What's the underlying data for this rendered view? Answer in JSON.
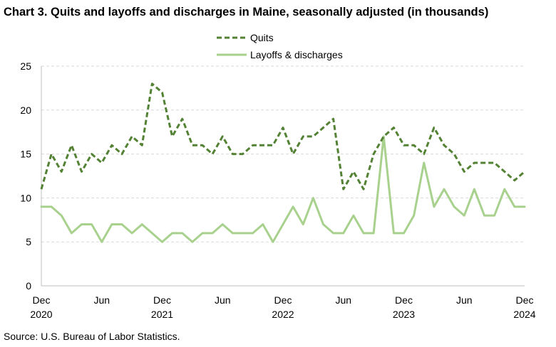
{
  "chart_data": {
    "type": "line",
    "title": "Chart 3. Quits and layoffs and discharges in Maine, seasonally adjusted (in thousands)",
    "source": "Source: U.S. Bureau of Labor Statistics.",
    "xlabel": "",
    "ylabel": "",
    "ylim": [
      0,
      25
    ],
    "yticks": [
      "0",
      "5",
      "10",
      "15",
      "20",
      "25"
    ],
    "x_start": "Dec 2020",
    "x_end": "Dec 2024",
    "xticks": [
      {
        "index": 0,
        "month": "Dec",
        "year": "2020"
      },
      {
        "index": 6,
        "month": "Jun",
        "year": ""
      },
      {
        "index": 12,
        "month": "Dec",
        "year": "2021"
      },
      {
        "index": 18,
        "month": "Jun",
        "year": ""
      },
      {
        "index": 24,
        "month": "Dec",
        "year": "2022"
      },
      {
        "index": 30,
        "month": "Jun",
        "year": ""
      },
      {
        "index": 36,
        "month": "Dec",
        "year": "2023"
      },
      {
        "index": 42,
        "month": "Jun",
        "year": ""
      },
      {
        "index": 48,
        "month": "Dec",
        "year": "2024"
      }
    ],
    "grid": true,
    "legend_position": "top-center",
    "series": [
      {
        "name": "Quits",
        "style": "dashed",
        "color": "#548235",
        "values": [
          11,
          15,
          13,
          16,
          13,
          15,
          14,
          16,
          15,
          17,
          16,
          23,
          22,
          17,
          19,
          16,
          16,
          15,
          17,
          15,
          15,
          16,
          16,
          16,
          18,
          15,
          17,
          17,
          18,
          19,
          11,
          13,
          11,
          15,
          17,
          18,
          16,
          16,
          15,
          18,
          16,
          15,
          13,
          14,
          14,
          14,
          13,
          12,
          13
        ]
      },
      {
        "name": "Layoffs & discharges",
        "style": "solid",
        "color": "#A9D18E",
        "values": [
          9,
          9,
          8,
          6,
          7,
          7,
          5,
          7,
          7,
          6,
          7,
          6,
          5,
          6,
          6,
          5,
          6,
          6,
          7,
          6,
          6,
          6,
          7,
          5,
          7,
          9,
          7,
          10,
          7,
          6,
          6,
          8,
          6,
          6,
          17,
          6,
          6,
          8,
          14,
          9,
          11,
          9,
          8,
          11,
          8,
          8,
          11,
          9,
          9
        ]
      }
    ]
  }
}
